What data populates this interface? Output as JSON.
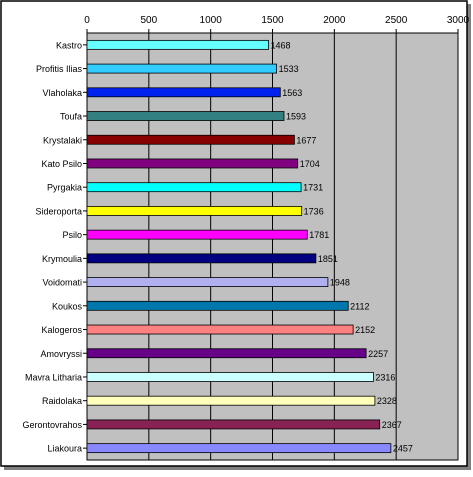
{
  "chart_data": {
    "type": "bar",
    "orientation": "horizontal",
    "title": "",
    "xlabel": "",
    "ylabel": "",
    "xlim": [
      0,
      3000
    ],
    "x_ticks": [
      0,
      500,
      1000,
      1500,
      2000,
      2500,
      3000
    ],
    "x_tick_labels": [
      "0",
      "500",
      "1000",
      "1500",
      "2000",
      "2500",
      "3000"
    ],
    "x_axis_position": "top",
    "grid": true,
    "plot_background": "#c0c0c0",
    "frame_color": "#000000",
    "categories": [
      "Kastro",
      "Profitis Ilias",
      "Vlaholaka",
      "Toufa",
      "Krystalaki",
      "Kato Psilo",
      "Pyrgakia",
      "Sideroporta",
      "Psilo",
      "Krymoulia",
      "Voidomati",
      "Koukos",
      "Kalogeros",
      "Amovryssi",
      "Mavra Litharia",
      "Raidolaka",
      "Gerontovrahos",
      "Liakoura"
    ],
    "values": [
      1468,
      1533,
      1563,
      1593,
      1677,
      1704,
      1731,
      1736,
      1781,
      1851,
      1948,
      2112,
      2152,
      2257,
      2316,
      2328,
      2367,
      2457
    ],
    "value_labels": [
      "1468",
      "1533",
      "1563",
      "1593",
      "1677",
      "1704",
      "1731",
      "1736",
      "1781",
      "1851",
      "1948",
      "2112",
      "2152",
      "2257",
      "2316",
      "2328",
      "2367",
      "2457"
    ],
    "bar_colors": [
      "#66ffff",
      "#33ccff",
      "#0022ee",
      "#338080",
      "#880000",
      "#800080",
      "#00ffff",
      "#ffff00",
      "#ff00ff",
      "#000080",
      "#b0b0f0",
      "#0077aa",
      "#ff8080",
      "#660088",
      "#ccffff",
      "#ffffbb",
      "#882255",
      "#8888ff"
    ]
  }
}
